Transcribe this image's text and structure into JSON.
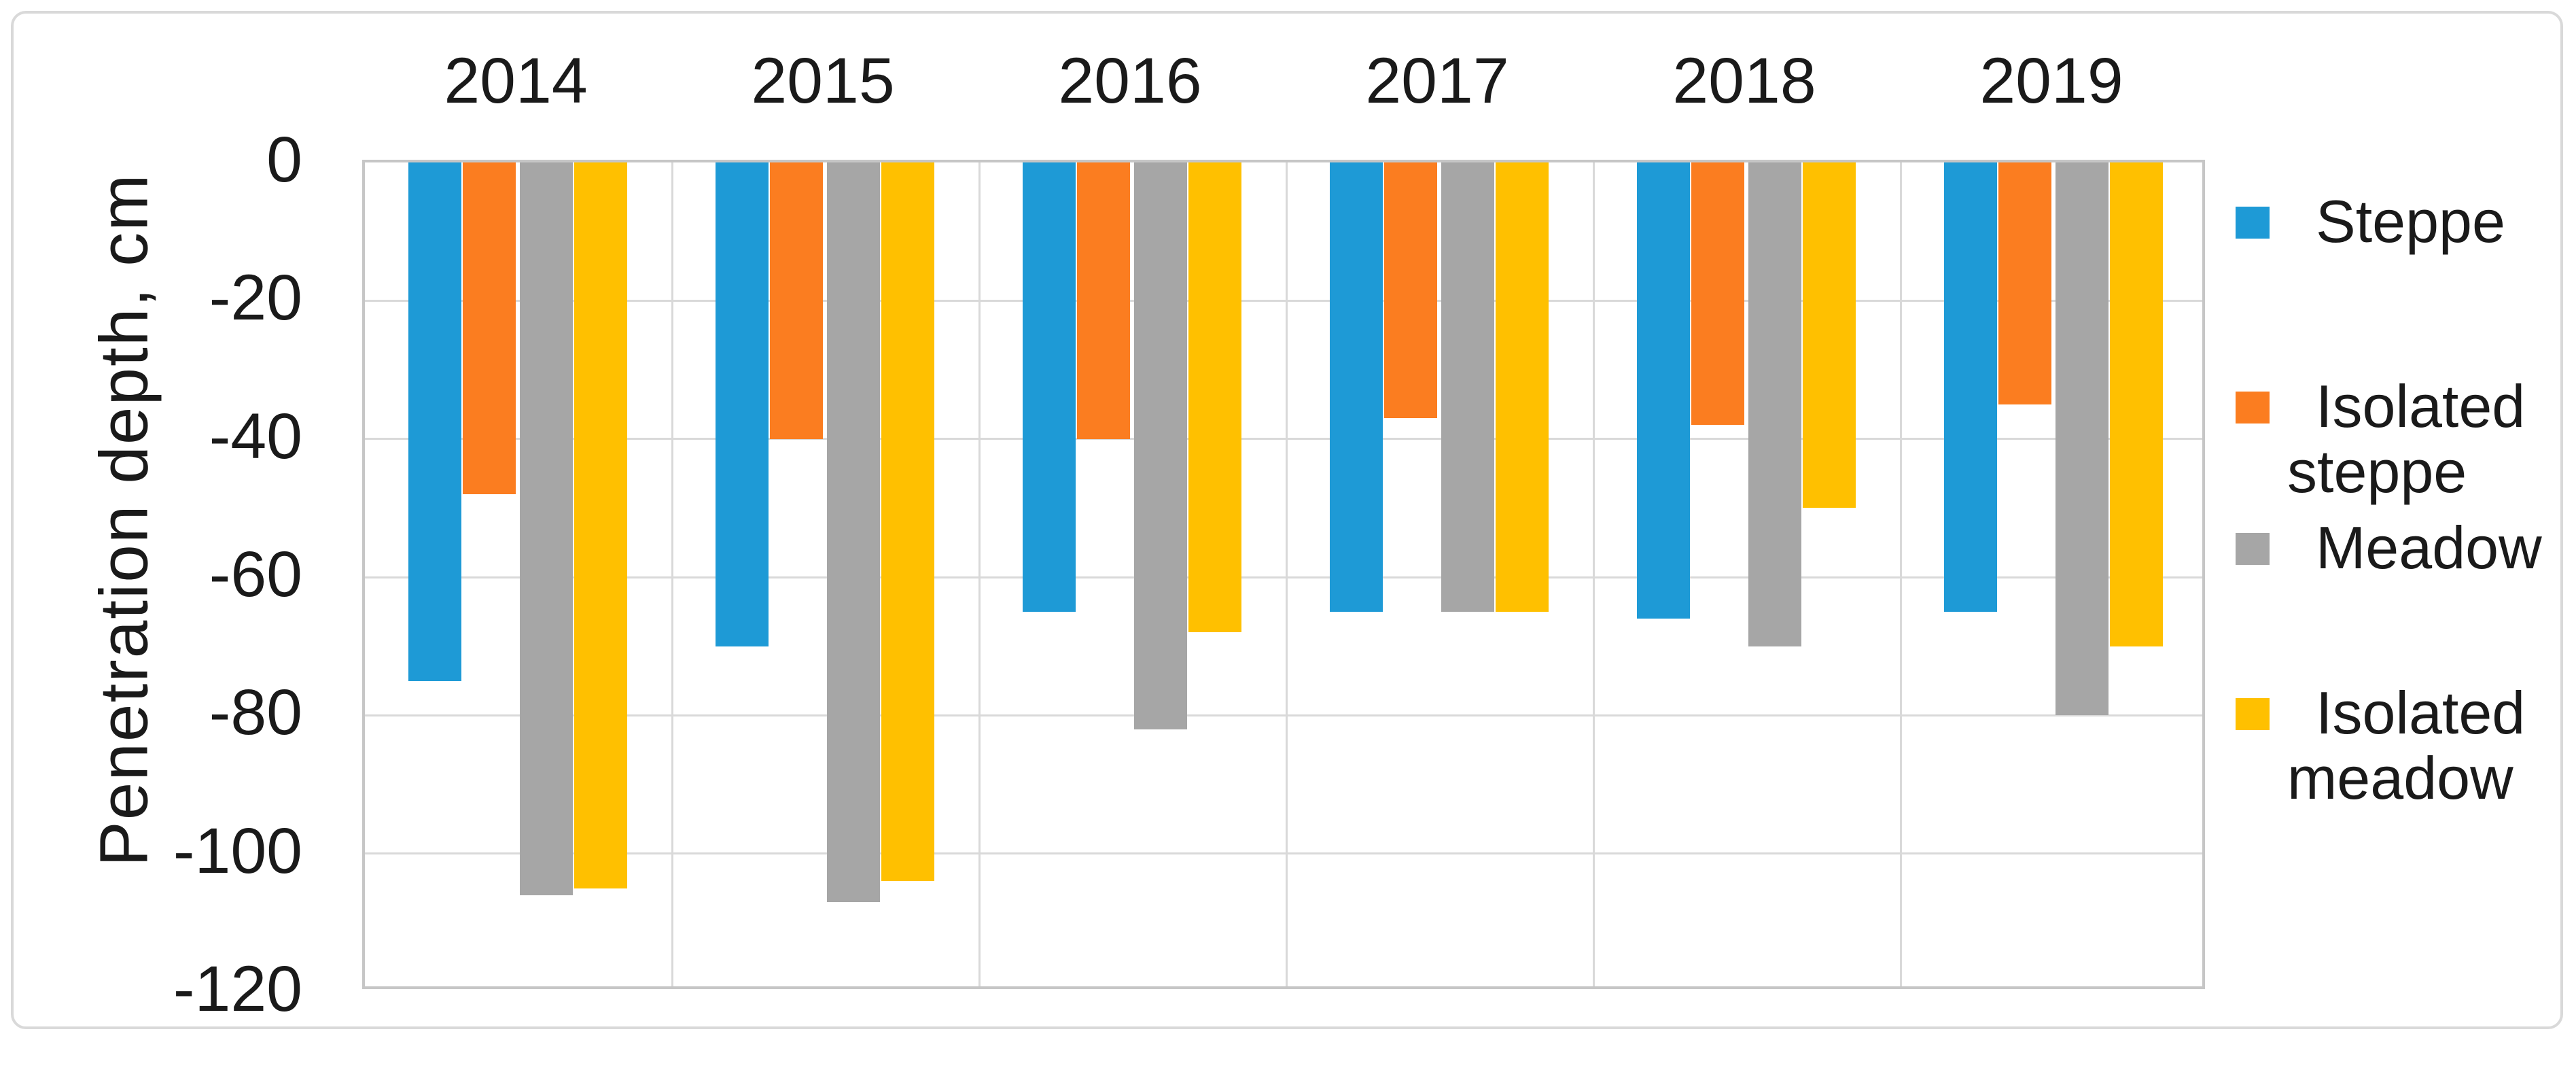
{
  "y_axis": {
    "title": "Penetration depth, cm",
    "tick_labels": [
      "0",
      "-20",
      "-40",
      "-60",
      "-80",
      "-100",
      "-120"
    ]
  },
  "x_axis": {
    "categories": [
      "2014",
      "2015",
      "2016",
      "2017",
      "2018",
      "2019"
    ]
  },
  "legend": {
    "position": "right",
    "items": [
      {
        "label": "Steppe",
        "lines": [
          "Steppe"
        ],
        "color": "#1e9ad6",
        "swatch": "blue-square-icon"
      },
      {
        "label": "Isolated steppe",
        "lines": [
          "Isolated",
          "steppe"
        ],
        "color": "#fb7d20",
        "swatch": "orange-square-icon"
      },
      {
        "label": "Meadow",
        "lines": [
          "Meadow"
        ],
        "color": "#a6a6a6",
        "swatch": "gray-square-icon"
      },
      {
        "label": "Isolated meadow",
        "lines": [
          "Isolated",
          "meadow"
        ],
        "color": "#ffc000",
        "swatch": "yellow-square-icon"
      }
    ]
  },
  "colors": {
    "grid": "#d9d9d9",
    "plot_border": "#c6c6c6",
    "frame_border": "#d9d9d9",
    "text": "#1a1a1a"
  },
  "chart_data": {
    "type": "bar",
    "orientation": "vertical",
    "title": "",
    "xlabel": "",
    "ylabel": "Penetration depth, cm",
    "ylim": [
      -120,
      0
    ],
    "ytick_interval": 20,
    "grid": true,
    "legend_position": "right",
    "categories": [
      "2014",
      "2015",
      "2016",
      "2017",
      "2018",
      "2019"
    ],
    "series": [
      {
        "name": "Steppe",
        "color": "#1e9ad6",
        "values": [
          -75,
          -70,
          -65,
          -65,
          -66,
          -65
        ]
      },
      {
        "name": "Isolated steppe",
        "color": "#fb7d20",
        "values": [
          -48,
          -40,
          -40,
          -37,
          -38,
          -35
        ]
      },
      {
        "name": "Meadow",
        "color": "#a6a6a6",
        "values": [
          -106,
          -107,
          -82,
          -65,
          -70,
          -80
        ]
      },
      {
        "name": "Isolated meadow",
        "color": "#ffc000",
        "values": [
          -105,
          -104,
          -68,
          -65,
          -50,
          -70
        ]
      }
    ]
  }
}
